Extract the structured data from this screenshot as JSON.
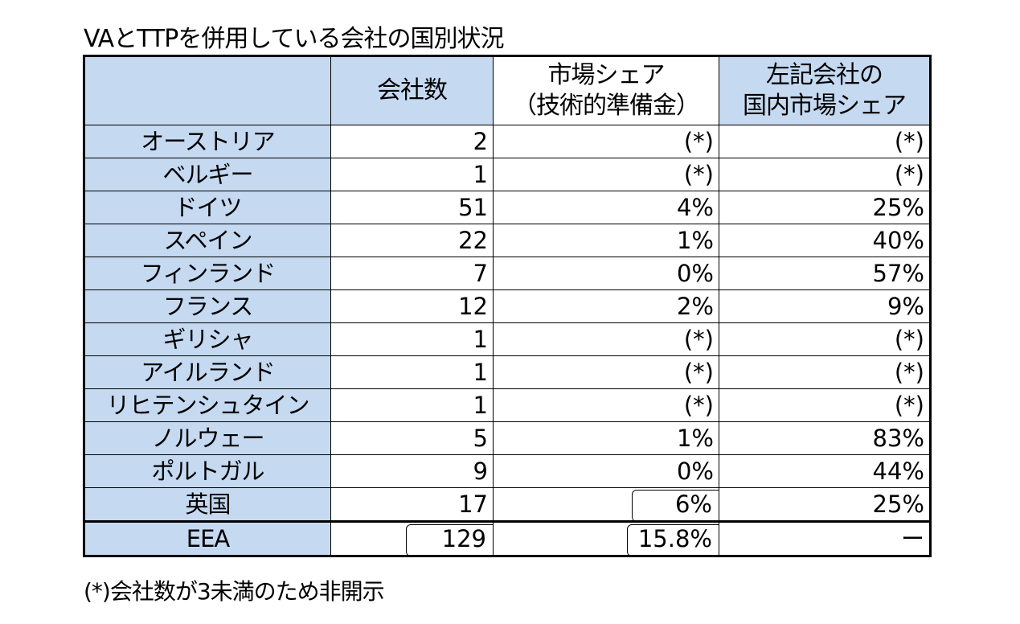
{
  "title": "VAとTTPを併用している会社の国別状況",
  "table": {
    "headers": {
      "companies": "会社数",
      "market_share_line1": "市場シェア",
      "market_share_line2": "（技術的準備金）",
      "domestic_share_line1": "左記会社の",
      "domestic_share_line2": "国内市場シェア"
    },
    "rows": [
      {
        "country": "オーストリア",
        "companies": "2",
        "market_share": "(*)",
        "domestic_share": "(*)"
      },
      {
        "country": "ベルギー",
        "companies": "1",
        "market_share": "(*)",
        "domestic_share": "(*)"
      },
      {
        "country": "ドイツ",
        "companies": "51",
        "market_share": "4%",
        "domestic_share": "25%"
      },
      {
        "country": "スペイン",
        "companies": "22",
        "market_share": "1%",
        "domestic_share": "40%"
      },
      {
        "country": "フィンランド",
        "companies": "7",
        "market_share": "0%",
        "domestic_share": "57%"
      },
      {
        "country": "フランス",
        "companies": "12",
        "market_share": "2%",
        "domestic_share": "9%"
      },
      {
        "country": "ギリシャ",
        "companies": "1",
        "market_share": "(*)",
        "domestic_share": "(*)"
      },
      {
        "country": "アイルランド",
        "companies": "1",
        "market_share": "(*)",
        "domestic_share": "(*)"
      },
      {
        "country": "リヒテンシュタイン",
        "companies": "1",
        "market_share": "(*)",
        "domestic_share": "(*)"
      },
      {
        "country": "ノルウェー",
        "companies": "5",
        "market_share": "1%",
        "domestic_share": "83%"
      },
      {
        "country": "ポルトガル",
        "companies": "9",
        "market_share": "0%",
        "domestic_share": "44%"
      },
      {
        "country": "英国",
        "companies": "17",
        "market_share": "6%",
        "domestic_share": "25%"
      }
    ],
    "total": {
      "country": "EEA",
      "companies": "129",
      "market_share": "15.8%",
      "domestic_share": "ー"
    }
  },
  "footnote": "(*)会社数が3未満のため非開示"
}
